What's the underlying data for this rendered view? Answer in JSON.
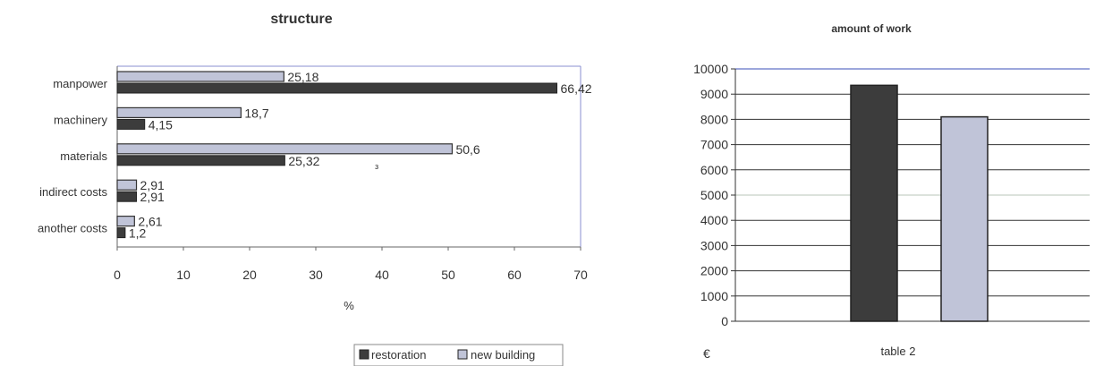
{
  "chart_data": [
    {
      "type": "bar",
      "orientation": "horizontal",
      "title": "structure",
      "xlabel": "%",
      "ylabel": "",
      "xlim": [
        0,
        70
      ],
      "x_ticks": [
        0,
        10,
        20,
        30,
        40,
        50,
        60,
        70
      ],
      "categories": [
        "manpower",
        "machinery",
        "materials",
        "indirect costs",
        "another costs"
      ],
      "series": [
        {
          "name": "new building",
          "values": [
            25.18,
            18.7,
            50.6,
            2.91,
            2.61
          ],
          "labels": [
            "25,18",
            "18,7",
            "50,6",
            "2,91",
            "2,61"
          ],
          "color": "#c0c4d8"
        },
        {
          "name": "restoration",
          "values": [
            66.42,
            4.15,
            25.32,
            2.91,
            1.2
          ],
          "labels": [
            "66,42",
            "4,15",
            "25,32",
            "2,91",
            "1,2"
          ],
          "color": "#3c3c3c"
        }
      ],
      "legend_position": "bottom",
      "stray_mark": "з",
      "legend": [
        "restoration",
        "new building"
      ]
    },
    {
      "type": "bar",
      "title": "amount of work",
      "xlabel": "table 2",
      "ylabel": "",
      "unit_label": "€",
      "ylim": [
        0,
        10000
      ],
      "y_ticks": [
        0,
        1000,
        2000,
        3000,
        4000,
        5000,
        6000,
        7000,
        8000,
        9000,
        10000
      ],
      "series": [
        {
          "name": "restoration",
          "value": 9350,
          "color": "#3c3c3c"
        },
        {
          "name": "new building",
          "value": 8100,
          "color": "#c0c4d8"
        }
      ],
      "grid": true
    }
  ]
}
